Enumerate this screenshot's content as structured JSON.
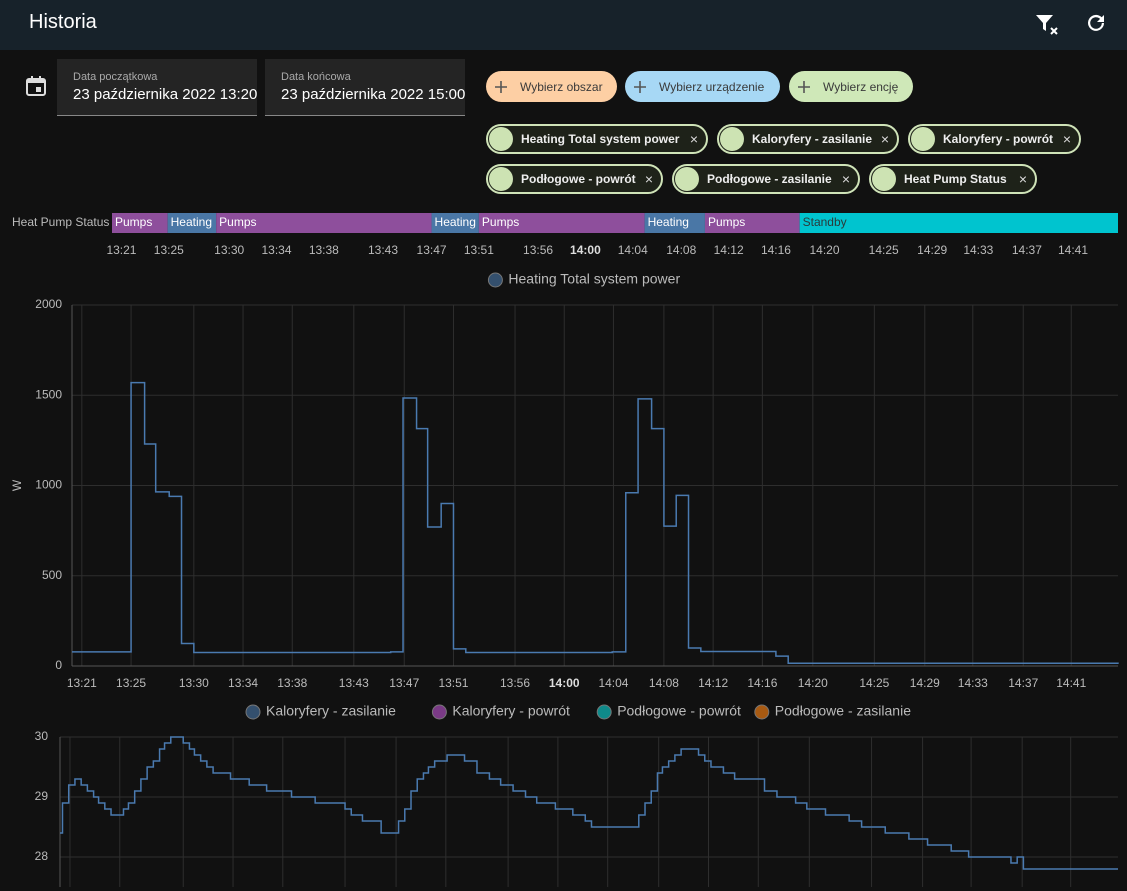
{
  "header": {
    "title": "Historia"
  },
  "date_start": {
    "label": "Data początkowa",
    "value": "23 października 2022 13:20"
  },
  "date_end": {
    "label": "Data końcowa",
    "value": "23 października 2022 15:00"
  },
  "pickers": [
    "Wybierz obszar",
    "Wybierz urządzenie",
    "Wybierz encję"
  ],
  "chips": [
    "Heating Total system power",
    "Kaloryfery - zasilanie",
    "Kaloryfery - powrót",
    "Podłogowe - powrót",
    "Podłogowe - zasilanie",
    "Heat Pump Status"
  ],
  "chart_data": [
    {
      "type": "timeline",
      "label": "Heat Pump Status",
      "xlim": [
        20,
        105
      ],
      "segments": [
        {
          "state": "Pumps",
          "start": 20,
          "end": 24.7,
          "color": "#8e4f9c",
          "label_color": "#ffffff"
        },
        {
          "state": "Heating",
          "start": 24.7,
          "end": 28.8,
          "color": "#4a77a6",
          "label_color": "#ffffff"
        },
        {
          "state": "Pumps",
          "start": 28.8,
          "end": 47.0,
          "color": "#8e4f9c",
          "label_color": "#ffffff"
        },
        {
          "state": "Heating",
          "start": 47.0,
          "end": 51.0,
          "color": "#4a77a6",
          "label_color": "#ffffff"
        },
        {
          "state": "Pumps",
          "start": 51.0,
          "end": 65.0,
          "color": "#8e4f9c",
          "label_color": "#ffffff"
        },
        {
          "state": "Heating",
          "start": 65.0,
          "end": 70.1,
          "color": "#4a77a6",
          "label_color": "#ffffff"
        },
        {
          "state": "Pumps",
          "start": 70.1,
          "end": 78.1,
          "color": "#8e4f9c",
          "label_color": "#ffffff"
        },
        {
          "state": "Standby",
          "start": 78.1,
          "end": 105,
          "color": "#00c4cf",
          "label_color": "#2a3a3a"
        }
      ],
      "xticks": [
        {
          "value": 20.8,
          "label": "13:21"
        },
        {
          "value": 24.8,
          "label": "13:25"
        },
        {
          "value": 29.9,
          "label": "13:30"
        },
        {
          "value": 33.9,
          "label": "13:34"
        },
        {
          "value": 37.9,
          "label": "13:38"
        },
        {
          "value": 42.9,
          "label": "13:43"
        },
        {
          "value": 47.0,
          "label": "13:47"
        },
        {
          "value": 51.0,
          "label": "13:51"
        },
        {
          "value": 56.0,
          "label": "13:56"
        },
        {
          "value": 60.0,
          "label": "14:00",
          "bold": true
        },
        {
          "value": 64.0,
          "label": "14:04"
        },
        {
          "value": 68.1,
          "label": "14:08"
        },
        {
          "value": 72.1,
          "label": "14:12"
        },
        {
          "value": 76.1,
          "label": "14:16"
        },
        {
          "value": 80.2,
          "label": "14:20"
        },
        {
          "value": 85.2,
          "label": "14:25"
        },
        {
          "value": 89.3,
          "label": "14:29"
        },
        {
          "value": 93.2,
          "label": "14:33"
        },
        {
          "value": 97.3,
          "label": "14:37"
        },
        {
          "value": 101.2,
          "label": "14:41"
        }
      ]
    },
    {
      "type": "line",
      "step": true,
      "ylabel": "W",
      "xlim": [
        20,
        105
      ],
      "ylim": [
        0,
        2000
      ],
      "yticks": [
        0,
        500,
        1000,
        1500,
        2000
      ],
      "grid": true,
      "xticks": [
        {
          "value": 20.8,
          "label": "13:21"
        },
        {
          "value": 24.8,
          "label": "13:25"
        },
        {
          "value": 29.9,
          "label": "13:30"
        },
        {
          "value": 33.9,
          "label": "13:34"
        },
        {
          "value": 37.9,
          "label": "13:38"
        },
        {
          "value": 42.9,
          "label": "13:43"
        },
        {
          "value": 47.0,
          "label": "13:47"
        },
        {
          "value": 51.0,
          "label": "13:51"
        },
        {
          "value": 56.0,
          "label": "13:56"
        },
        {
          "value": 60.0,
          "label": "14:00",
          "bold": true
        },
        {
          "value": 64.0,
          "label": "14:04"
        },
        {
          "value": 68.1,
          "label": "14:08"
        },
        {
          "value": 72.1,
          "label": "14:12"
        },
        {
          "value": 76.1,
          "label": "14:16"
        },
        {
          "value": 80.2,
          "label": "14:20"
        },
        {
          "value": 85.2,
          "label": "14:25"
        },
        {
          "value": 89.3,
          "label": "14:29"
        },
        {
          "value": 93.2,
          "label": "14:33"
        },
        {
          "value": 97.3,
          "label": "14:37"
        },
        {
          "value": 101.2,
          "label": "14:41"
        }
      ],
      "series": [
        {
          "name": "Heating Total system power",
          "color": "#4a7ab0",
          "legend_color": "#34506e",
          "x": [
            20,
            24.8,
            25.9,
            26.8,
            27.9,
            28.9,
            29.9,
            45.9,
            46.9,
            48.0,
            48.9,
            50.0,
            51.0,
            52.0,
            63.9,
            65.0,
            66.0,
            67.1,
            68.1,
            69.1,
            70.1,
            71.1,
            77.2,
            78.2,
            105
          ],
          "values": [
            78,
            1570,
            1230,
            965,
            940,
            125,
            75,
            78,
            1485,
            1315,
            770,
            900,
            95,
            75,
            78,
            960,
            1480,
            1315,
            775,
            945,
            100,
            80,
            55,
            15,
            12
          ]
        }
      ]
    },
    {
      "type": "line",
      "step": true,
      "xlim": [
        20,
        105
      ],
      "ylim": [
        27.5,
        30
      ],
      "yticks": [
        28,
        29,
        30
      ],
      "grid": true,
      "series": [
        {
          "name": "Kaloryfery - zasilanie",
          "color": "#4a7ab0",
          "legend_color": "#34506e",
          "x": [
            20.0,
            20.2,
            20.7,
            21.2,
            21.7,
            22.2,
            22.7,
            23.1,
            23.6,
            24.1,
            25.1,
            25.5,
            26.0,
            26.5,
            27.0,
            27.5,
            28.0,
            28.4,
            28.9,
            29.9,
            30.4,
            30.8,
            31.3,
            31.8,
            32.3,
            33.7,
            35.2,
            36.6,
            38.6,
            40.5,
            42.9,
            43.4,
            44.3,
            45.8,
            47.2,
            47.7,
            48.2,
            48.7,
            49.2,
            49.6,
            50.1,
            51.1,
            52.5,
            53.5,
            54.5,
            55.4,
            56.4,
            57.4,
            58.3,
            59.8,
            61.2,
            62.2,
            62.7,
            66.5,
            67.0,
            67.5,
            68.0,
            68.4,
            68.9,
            69.4,
            69.9,
            71.3,
            71.8,
            72.3,
            73.3,
            74.2,
            76.6,
            77.6,
            79.1,
            80.0,
            81.5,
            83.4,
            84.4,
            86.3,
            88.2,
            89.7,
            91.6,
            93.0,
            96.4,
            96.9,
            97.4,
            105
          ],
          "values": [
            28.4,
            28.9,
            29.2,
            29.3,
            29.2,
            29.1,
            29.0,
            28.9,
            28.8,
            28.7,
            28.8,
            28.9,
            29.1,
            29.3,
            29.5,
            29.6,
            29.8,
            29.9,
            30.0,
            29.9,
            29.8,
            29.7,
            29.6,
            29.5,
            29.4,
            29.3,
            29.2,
            29.1,
            29.0,
            28.9,
            28.8,
            28.7,
            28.6,
            28.4,
            28.6,
            28.8,
            29.1,
            29.3,
            29.4,
            29.5,
            29.6,
            29.7,
            29.6,
            29.4,
            29.3,
            29.2,
            29.1,
            29.0,
            28.9,
            28.8,
            28.7,
            28.6,
            28.5,
            28.7,
            28.9,
            29.1,
            29.4,
            29.5,
            29.6,
            29.7,
            29.8,
            29.7,
            29.6,
            29.5,
            29.4,
            29.3,
            29.1,
            29.0,
            28.9,
            28.8,
            28.7,
            28.6,
            28.5,
            28.4,
            28.3,
            28.2,
            28.1,
            28.0,
            27.9,
            28.0,
            27.8,
            27.8
          ]
        },
        {
          "name": "Kaloryfery - powrót",
          "legend_color": "#7a3a86"
        },
        {
          "name": "Podłogowe - powrót",
          "legend_color": "#0f8a8a"
        },
        {
          "name": "Podłogowe - zasilanie",
          "legend_color": "#a85a12"
        }
      ]
    }
  ]
}
